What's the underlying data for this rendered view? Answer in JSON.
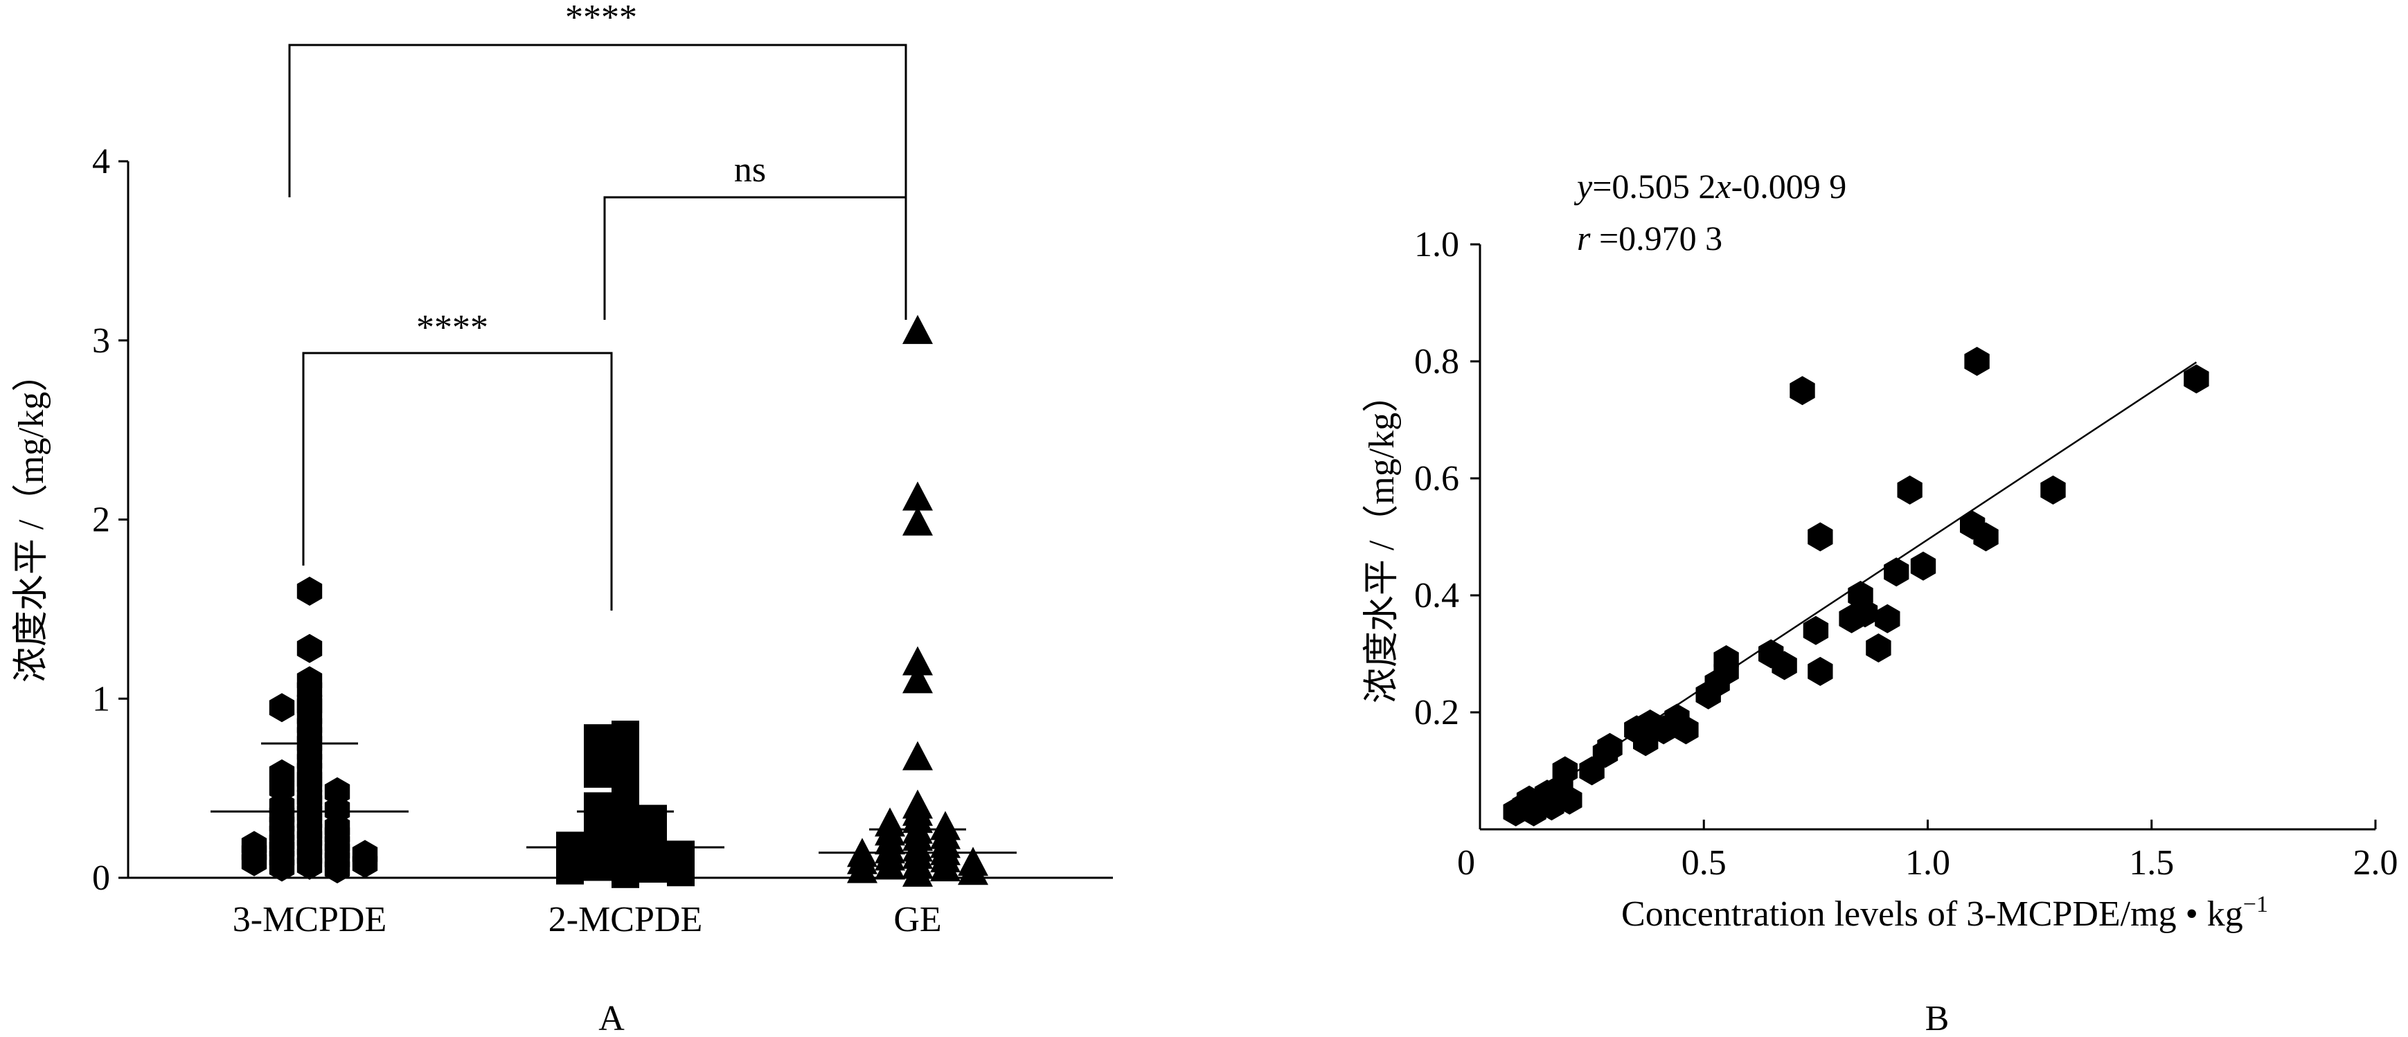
{
  "chart_data": [
    {
      "panel": "A",
      "type": "scatter",
      "panel_label": "A",
      "ylabel": "浓度水平 /（mg/kg）",
      "ylim": [
        0,
        4
      ],
      "yticks": [
        "0",
        "1",
        "2",
        "3",
        "4"
      ],
      "categories": [
        "3-MCPDE",
        "2-MCPDE",
        "GE"
      ],
      "markers": [
        "hexagon",
        "square",
        "triangle"
      ],
      "means": [
        0.37,
        0.17,
        0.14
      ],
      "sd_upper": [
        0.75,
        0.37,
        0.27
      ],
      "series": [
        {
          "name": "3-MCPDE",
          "values": [
            1.6,
            1.28,
            1.1,
            1.05,
            0.98,
            0.96,
            0.95,
            0.9,
            0.85,
            0.8,
            0.75,
            0.7,
            0.65,
            0.6,
            0.58,
            0.55,
            0.52,
            0.5,
            0.48,
            0.45,
            0.42,
            0.4,
            0.38,
            0.36,
            0.35,
            0.32,
            0.3,
            0.28,
            0.26,
            0.25,
            0.24,
            0.22,
            0.2,
            0.19,
            0.18,
            0.17,
            0.16,
            0.15,
            0.14,
            0.13,
            0.12,
            0.11,
            0.1,
            0.09,
            0.08,
            0.07,
            0.06,
            0.05
          ]
        },
        {
          "name": "2-MCPDE",
          "values": [
            0.8,
            0.78,
            0.72,
            0.68,
            0.62,
            0.58,
            0.55,
            0.5,
            0.46,
            0.42,
            0.4,
            0.37,
            0.35,
            0.33,
            0.3,
            0.28,
            0.26,
            0.24,
            0.22,
            0.2,
            0.19,
            0.18,
            0.17,
            0.16,
            0.15,
            0.14,
            0.13,
            0.12,
            0.11,
            0.1,
            0.09,
            0.08,
            0.07,
            0.06,
            0.05,
            0.04,
            0.03,
            0.02
          ]
        },
        {
          "name": "GE",
          "values": [
            3.05,
            2.12,
            1.98,
            1.2,
            1.1,
            0.67,
            0.4,
            0.36,
            0.32,
            0.3,
            0.28,
            0.26,
            0.25,
            0.23,
            0.22,
            0.2,
            0.18,
            0.16,
            0.15,
            0.14,
            0.13,
            0.12,
            0.11,
            0.1,
            0.09,
            0.08,
            0.07,
            0.06,
            0.05,
            0.04,
            0.03,
            0.02
          ]
        }
      ],
      "significance": [
        {
          "from": "3-MCPDE",
          "to": "GE",
          "label": "****"
        },
        {
          "from": "2-MCPDE",
          "to": "GE",
          "label": "ns"
        },
        {
          "from": "3-MCPDE",
          "to": "2-MCPDE",
          "label": "****"
        }
      ]
    },
    {
      "panel": "B",
      "type": "scatter",
      "panel_label": "B",
      "xlabel": "Concentration levels of 3-MCPDE/mg • kg",
      "xlabel_superscript": "−1",
      "ylabel": "浓度水平 /（mg/kg）",
      "xlim": [
        0,
        2.0
      ],
      "ylim": [
        0,
        1.0
      ],
      "xticks": [
        "0",
        "0.5",
        "1.0",
        "1.5",
        "2.0"
      ],
      "yticks": [
        "0.2",
        "0.4",
        "0.6",
        "0.8",
        "1.0"
      ],
      "equation": {
        "lhs": "y",
        "rhs_prefix": "=0.505 2",
        "var": "x",
        "rhs_suffix": "-0.009 9"
      },
      "correlation": {
        "lhs": "r",
        "rhs": " =0.970 3"
      },
      "fit": {
        "slope": 0.5052,
        "intercept": -0.0099,
        "x_range": [
          0.08,
          1.6
        ]
      },
      "points": [
        {
          "x": 0.08,
          "y": 0.03
        },
        {
          "x": 0.1,
          "y": 0.04
        },
        {
          "x": 0.11,
          "y": 0.05
        },
        {
          "x": 0.12,
          "y": 0.03
        },
        {
          "x": 0.14,
          "y": 0.05
        },
        {
          "x": 0.15,
          "y": 0.06
        },
        {
          "x": 0.16,
          "y": 0.04
        },
        {
          "x": 0.18,
          "y": 0.07
        },
        {
          "x": 0.19,
          "y": 0.1
        },
        {
          "x": 0.2,
          "y": 0.05
        },
        {
          "x": 0.25,
          "y": 0.1
        },
        {
          "x": 0.28,
          "y": 0.13
        },
        {
          "x": 0.29,
          "y": 0.14
        },
        {
          "x": 0.35,
          "y": 0.17
        },
        {
          "x": 0.37,
          "y": 0.15
        },
        {
          "x": 0.38,
          "y": 0.18
        },
        {
          "x": 0.41,
          "y": 0.17
        },
        {
          "x": 0.44,
          "y": 0.19
        },
        {
          "x": 0.46,
          "y": 0.17
        },
        {
          "x": 0.51,
          "y": 0.23
        },
        {
          "x": 0.53,
          "y": 0.25
        },
        {
          "x": 0.55,
          "y": 0.27
        },
        {
          "x": 0.55,
          "y": 0.29
        },
        {
          "x": 0.65,
          "y": 0.3
        },
        {
          "x": 0.68,
          "y": 0.28
        },
        {
          "x": 0.72,
          "y": 0.75
        },
        {
          "x": 0.75,
          "y": 0.34
        },
        {
          "x": 0.76,
          "y": 0.27
        },
        {
          "x": 0.76,
          "y": 0.5
        },
        {
          "x": 0.83,
          "y": 0.36
        },
        {
          "x": 0.85,
          "y": 0.4
        },
        {
          "x": 0.86,
          "y": 0.37
        },
        {
          "x": 0.89,
          "y": 0.31
        },
        {
          "x": 0.91,
          "y": 0.36
        },
        {
          "x": 0.93,
          "y": 0.44
        },
        {
          "x": 0.96,
          "y": 0.58
        },
        {
          "x": 0.99,
          "y": 0.45
        },
        {
          "x": 1.1,
          "y": 0.52
        },
        {
          "x": 1.11,
          "y": 0.8
        },
        {
          "x": 1.13,
          "y": 0.5
        },
        {
          "x": 1.28,
          "y": 0.58
        },
        {
          "x": 1.6,
          "y": 0.77
        }
      ]
    }
  ]
}
